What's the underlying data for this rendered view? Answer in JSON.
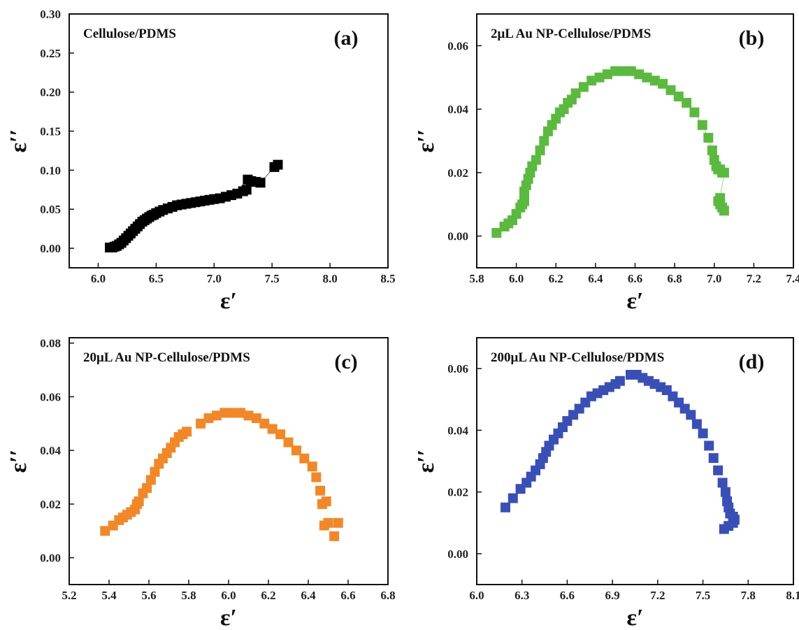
{
  "figure_title": "",
  "chart_data": [
    {
      "type": "scatter",
      "panel_label": "(a)",
      "title": "Cellulose/PDMS",
      "xlabel": "ε′",
      "ylabel": "ε′′",
      "xlim": [
        5.75,
        8.5
      ],
      "ylim": [
        -0.025,
        0.3
      ],
      "xticks": [
        "6.0",
        "6.5",
        "7.0",
        "7.5",
        "8.0",
        "8.5"
      ],
      "yticks": [
        "0.00",
        "0.05",
        "0.10",
        "0.15",
        "0.20",
        "0.25",
        "0.30"
      ],
      "color": "#000000",
      "connected": true,
      "series": [
        {
          "x": [
            6.1,
            6.12,
            6.14,
            6.16,
            6.18,
            6.2,
            6.22,
            6.24,
            6.26,
            6.28,
            6.3,
            6.32,
            6.34,
            6.36,
            6.38,
            6.4,
            6.42,
            6.44,
            6.46,
            6.48,
            6.5,
            6.53,
            6.56,
            6.6,
            6.64,
            6.68,
            6.72,
            6.76,
            6.8,
            6.84,
            6.88,
            6.92,
            6.96,
            7.0,
            7.05,
            7.1,
            7.15,
            7.2,
            7.25,
            7.28,
            7.29,
            7.32,
            7.36,
            7.4,
            7.52,
            7.55
          ],
          "y": [
            0.001,
            0.001,
            0.002,
            0.003,
            0.005,
            0.007,
            0.01,
            0.013,
            0.016,
            0.019,
            0.022,
            0.025,
            0.028,
            0.031,
            0.034,
            0.036,
            0.038,
            0.04,
            0.042,
            0.043,
            0.045,
            0.047,
            0.049,
            0.051,
            0.053,
            0.055,
            0.056,
            0.057,
            0.058,
            0.059,
            0.06,
            0.061,
            0.062,
            0.063,
            0.064,
            0.066,
            0.068,
            0.07,
            0.073,
            0.075,
            0.088,
            0.086,
            0.085,
            0.084,
            0.104,
            0.107
          ]
        }
      ]
    },
    {
      "type": "scatter",
      "panel_label": "(b)",
      "title": "2μL Au NP-Cellulose/PDMS",
      "xlabel": "ε′",
      "ylabel": "ε′′",
      "xlim": [
        5.8,
        7.4
      ],
      "ylim": [
        -0.01,
        0.07
      ],
      "xticks": [
        "5.8",
        "6.0",
        "6.2",
        "6.4",
        "6.6",
        "6.8",
        "7.0",
        "7.2",
        "7.4"
      ],
      "yticks": [
        "0.00",
        "0.02",
        "0.04",
        "0.06"
      ],
      "color": "#5cb940",
      "connected": true,
      "series": [
        {
          "x": [
            5.9,
            5.94,
            5.96,
            5.98,
            6.0,
            6.02,
            6.03,
            6.04,
            6.04,
            6.05,
            6.06,
            6.07,
            6.08,
            6.1,
            6.12,
            6.14,
            6.16,
            6.18,
            6.2,
            6.22,
            6.24,
            6.26,
            6.28,
            6.3,
            6.34,
            6.38,
            6.42,
            6.46,
            6.5,
            6.54,
            6.58,
            6.62,
            6.66,
            6.7,
            6.74,
            6.78,
            6.82,
            6.86,
            6.9,
            6.94,
            6.97,
            6.99,
            7.0,
            7.01,
            7.02,
            7.03,
            7.04,
            7.05,
            7.03,
            7.02,
            7.03,
            7.04,
            7.05
          ],
          "y": [
            0.001,
            0.003,
            0.004,
            0.005,
            0.007,
            0.009,
            0.01,
            0.011,
            0.014,
            0.016,
            0.018,
            0.02,
            0.022,
            0.024,
            0.027,
            0.03,
            0.033,
            0.035,
            0.037,
            0.039,
            0.04,
            0.042,
            0.043,
            0.045,
            0.047,
            0.049,
            0.05,
            0.051,
            0.052,
            0.052,
            0.052,
            0.051,
            0.05,
            0.049,
            0.048,
            0.046,
            0.044,
            0.042,
            0.039,
            0.035,
            0.031,
            0.027,
            0.024,
            0.022,
            0.021,
            0.021,
            0.02,
            0.02,
            0.012,
            0.011,
            0.01,
            0.009,
            0.008
          ]
        }
      ]
    },
    {
      "type": "scatter",
      "panel_label": "(c)",
      "title": "20μL Au NP-Cellulose/PDMS",
      "xlabel": "ε′",
      "ylabel": "ε′′",
      "xlim": [
        5.2,
        6.8
      ],
      "ylim": [
        -0.01,
        0.082
      ],
      "xticks": [
        "5.2",
        "5.4",
        "5.6",
        "5.8",
        "6.0",
        "6.2",
        "6.4",
        "6.6",
        "6.8"
      ],
      "yticks": [
        "0.00",
        "0.02",
        "0.04",
        "0.06",
        "0.08"
      ],
      "color": "#f0882a",
      "connected": false,
      "series": [
        {
          "x": [
            5.38,
            5.42,
            5.45,
            5.47,
            5.49,
            5.51,
            5.53,
            5.54,
            5.55,
            5.57,
            5.59,
            5.61,
            5.63,
            5.65,
            5.67,
            5.69,
            5.71,
            5.73,
            5.75,
            5.77,
            5.79,
            5.86,
            5.9,
            5.94,
            5.98,
            6.02,
            6.06,
            6.1,
            6.14,
            6.18,
            6.22,
            6.26,
            6.3,
            6.34,
            6.38,
            6.42,
            6.44,
            6.46,
            6.47,
            6.49,
            6.48,
            6.5,
            6.53,
            6.55
          ],
          "y": [
            0.01,
            0.012,
            0.014,
            0.015,
            0.016,
            0.017,
            0.018,
            0.02,
            0.021,
            0.024,
            0.026,
            0.029,
            0.032,
            0.035,
            0.037,
            0.039,
            0.041,
            0.043,
            0.045,
            0.046,
            0.047,
            0.05,
            0.052,
            0.053,
            0.054,
            0.054,
            0.054,
            0.053,
            0.052,
            0.05,
            0.048,
            0.046,
            0.043,
            0.04,
            0.037,
            0.034,
            0.03,
            0.025,
            0.02,
            0.021,
            0.012,
            0.013,
            0.008,
            0.013
          ]
        }
      ]
    },
    {
      "type": "scatter",
      "panel_label": "(d)",
      "title": "200μL Au NP-Cellulose/PDMS",
      "xlabel": "ε′",
      "ylabel": "ε′′",
      "xlim": [
        6.0,
        8.1
      ],
      "ylim": [
        -0.01,
        0.07
      ],
      "xticks": [
        "6.0",
        "6.3",
        "6.6",
        "6.9",
        "7.2",
        "7.5",
        "7.8",
        "8.1"
      ],
      "yticks": [
        "0.00",
        "0.02",
        "0.04",
        "0.06"
      ],
      "color": "#3a4fb5",
      "connected": false,
      "series": [
        {
          "x": [
            6.19,
            6.24,
            6.29,
            6.33,
            6.36,
            6.39,
            6.42,
            6.44,
            6.46,
            6.48,
            6.51,
            6.54,
            6.57,
            6.6,
            6.64,
            6.68,
            6.72,
            6.76,
            6.8,
            6.84,
            6.88,
            6.92,
            6.95,
            7.02,
            7.06,
            7.1,
            7.14,
            7.18,
            7.22,
            7.26,
            7.3,
            7.34,
            7.38,
            7.42,
            7.46,
            7.5,
            7.54,
            7.57,
            7.6,
            7.63,
            7.65,
            7.66,
            7.67,
            7.68,
            7.7,
            7.71,
            7.64,
            7.67,
            7.7
          ],
          "y": [
            0.015,
            0.018,
            0.021,
            0.023,
            0.025,
            0.027,
            0.029,
            0.031,
            0.033,
            0.035,
            0.037,
            0.039,
            0.041,
            0.043,
            0.045,
            0.047,
            0.049,
            0.051,
            0.052,
            0.053,
            0.054,
            0.055,
            0.056,
            0.058,
            0.058,
            0.057,
            0.056,
            0.055,
            0.054,
            0.053,
            0.051,
            0.049,
            0.047,
            0.045,
            0.042,
            0.039,
            0.035,
            0.031,
            0.027,
            0.023,
            0.02,
            0.017,
            0.015,
            0.013,
            0.012,
            0.011,
            0.008,
            0.009,
            0.01
          ]
        }
      ]
    }
  ]
}
